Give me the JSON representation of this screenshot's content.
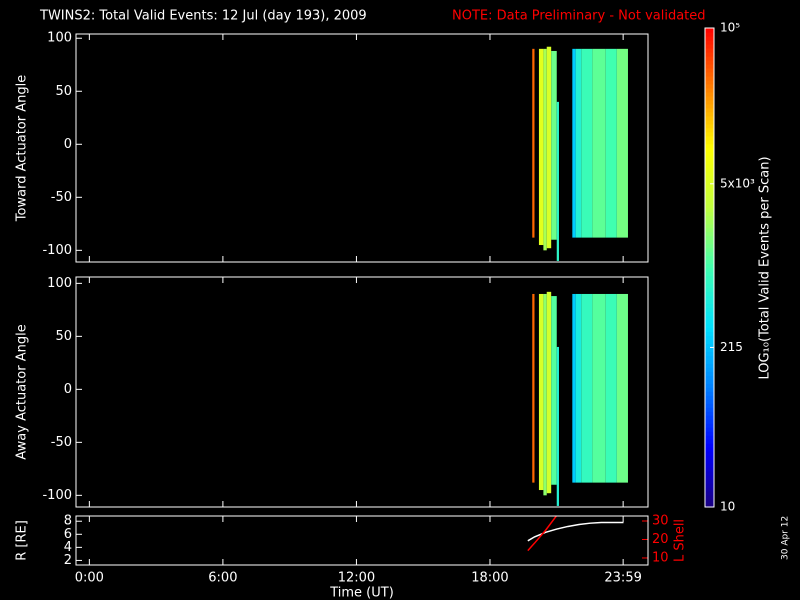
{
  "title": "TWINS2: Total Valid Events: 12 Jul (day 193), 2009",
  "note": "NOTE: Data Preliminary - Not validated",
  "stamp": "30 Apr 12",
  "xlabel": "Time (UT)",
  "xlim": [
    -0.6,
    25.1
  ],
  "xticks": [
    {
      "value": 0,
      "label": "0:00"
    },
    {
      "value": 6,
      "label": "6:00"
    },
    {
      "value": 12,
      "label": "12:00"
    },
    {
      "value": 18,
      "label": "18:00"
    },
    {
      "value": 23.983,
      "label": "23:59"
    }
  ],
  "colorbar": {
    "label": "LOG₁₀(Total Valid Events per Scan)",
    "lim": [
      10,
      100000
    ],
    "log": true,
    "ticks": [
      10,
      215,
      {
        "value": 5000,
        "label": "5x10³"
      },
      {
        "value": 100000,
        "label": "10⁵"
      }
    ],
    "colormap": [
      "#1a0080",
      "#0000ff",
      "#0080ff",
      "#00e0ff",
      "#40ffb0",
      "#c0ff40",
      "#ffff00",
      "#ff8000",
      "#ff0000"
    ]
  },
  "chart_data": [
    {
      "type": "heatmap",
      "ylabel": "Toward Actuator Angle",
      "ylim": [
        -111,
        104
      ],
      "yticks": [
        -100,
        -50,
        0,
        50,
        100
      ],
      "strips": [
        {
          "start": 19.9,
          "end": 20.0,
          "low": -88,
          "high": 90,
          "value": 40000
        },
        {
          "start": 20.2,
          "end": 20.4,
          "low": -95,
          "high": 90,
          "value": 6000
        },
        {
          "start": 20.4,
          "end": 20.55,
          "low": -100,
          "high": 90,
          "value": 2500
        },
        {
          "start": 20.55,
          "end": 20.75,
          "low": -98,
          "high": 92,
          "value": 5000
        },
        {
          "start": 20.75,
          "end": 21.0,
          "low": -90,
          "high": 88,
          "value": 1500
        },
        {
          "start": 21.0,
          "end": 21.1,
          "low": -110,
          "high": 40,
          "value": 700
        },
        {
          "start": 21.7,
          "end": 21.85,
          "low": -88,
          "high": 90,
          "value": 250
        },
        {
          "start": 21.85,
          "end": 22.1,
          "low": -88,
          "high": 90,
          "value": 600
        },
        {
          "start": 22.1,
          "end": 22.6,
          "low": -88,
          "high": 90,
          "value": 900
        },
        {
          "start": 22.6,
          "end": 23.2,
          "low": -88,
          "high": 90,
          "value": 1300
        },
        {
          "start": 23.2,
          "end": 23.7,
          "low": -88,
          "high": 90,
          "value": 1000
        },
        {
          "start": 23.7,
          "end": 24.2,
          "low": -88,
          "high": 90,
          "value": 1600
        }
      ]
    },
    {
      "type": "heatmap",
      "ylabel": "Away Actuator Angle",
      "ylim": [
        -111,
        106
      ],
      "yticks": [
        -100,
        -50,
        0,
        50,
        100
      ],
      "strips": [
        {
          "start": 19.9,
          "end": 20.0,
          "low": -88,
          "high": 90,
          "value": 40000
        },
        {
          "start": 20.2,
          "end": 20.4,
          "low": -95,
          "high": 90,
          "value": 5000
        },
        {
          "start": 20.4,
          "end": 20.55,
          "low": -100,
          "high": 90,
          "value": 2000
        },
        {
          "start": 20.55,
          "end": 20.75,
          "low": -98,
          "high": 92,
          "value": 4500
        },
        {
          "start": 20.75,
          "end": 21.0,
          "low": -90,
          "high": 88,
          "value": 1200
        },
        {
          "start": 21.0,
          "end": 21.1,
          "low": -110,
          "high": 40,
          "value": 600
        },
        {
          "start": 21.7,
          "end": 21.85,
          "low": -88,
          "high": 90,
          "value": 250
        },
        {
          "start": 21.85,
          "end": 22.1,
          "low": -88,
          "high": 90,
          "value": 500
        },
        {
          "start": 22.1,
          "end": 22.6,
          "low": -88,
          "high": 90,
          "value": 800
        },
        {
          "start": 22.6,
          "end": 23.2,
          "low": -88,
          "high": 90,
          "value": 1200
        },
        {
          "start": 23.2,
          "end": 23.7,
          "low": -88,
          "high": 90,
          "value": 900
        },
        {
          "start": 23.7,
          "end": 24.2,
          "low": -88,
          "high": 90,
          "value": 1500
        }
      ]
    },
    {
      "type": "line",
      "ylabel": "R [RE]",
      "y2label": "L Shell",
      "ylim": [
        1.3,
        8.8
      ],
      "yticks": [
        2,
        4,
        6,
        8
      ],
      "y2lim": [
        6.2,
        32.7
      ],
      "y2ticks": [
        10,
        20,
        30
      ],
      "x": [
        19.7,
        20.0,
        20.5,
        21.0,
        21.5,
        22.0,
        22.5,
        23.0,
        23.5,
        24.0
      ],
      "series": [
        {
          "name": "R",
          "color": "#ffffff",
          "values": [
            5.0,
            5.6,
            6.3,
            6.8,
            7.2,
            7.5,
            7.7,
            7.8,
            7.8,
            7.8
          ]
        },
        {
          "name": "L",
          "color": "#ff0000",
          "axis": "y2",
          "values": [
            14,
            18,
            25,
            33,
            null,
            null,
            null,
            null,
            null,
            null
          ]
        }
      ]
    }
  ]
}
